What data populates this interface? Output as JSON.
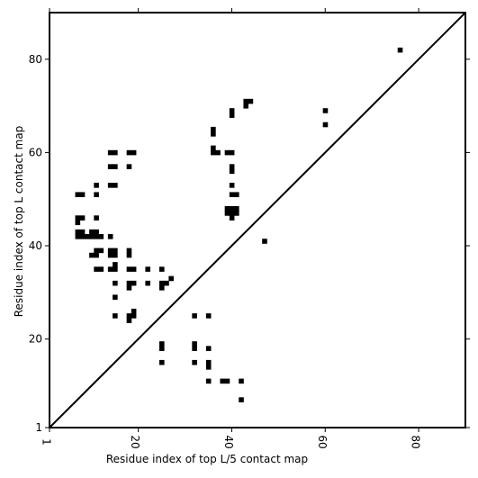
{
  "chart_data": {
    "type": "scatter",
    "title": "",
    "xlabel": "Residue index of top L/5 contact map",
    "ylabel": "Residue index of top L contact map",
    "xlim": [
      1,
      90
    ],
    "ylim": [
      1,
      90
    ],
    "xticks": [
      1,
      20,
      40,
      60,
      80
    ],
    "yticks": [
      1,
      20,
      40,
      60,
      80
    ],
    "grid": false,
    "legend": "none",
    "marker_color": "#000000",
    "diagonal_line": true,
    "series": [
      {
        "points": [
          [
            7,
            51
          ],
          [
            8,
            51
          ],
          [
            11,
            53
          ],
          [
            11,
            51
          ],
          [
            7,
            46
          ],
          [
            8,
            46
          ],
          [
            7,
            45
          ],
          [
            11,
            46
          ],
          [
            7,
            43
          ],
          [
            8,
            43
          ],
          [
            7,
            42
          ],
          [
            8,
            42
          ],
          [
            9,
            42
          ],
          [
            10,
            43
          ],
          [
            11,
            43
          ],
          [
            10,
            42
          ],
          [
            11,
            42
          ],
          [
            12,
            42
          ],
          [
            14,
            42
          ],
          [
            10,
            38
          ],
          [
            11,
            38
          ],
          [
            11,
            39
          ],
          [
            12,
            39
          ],
          [
            14,
            39
          ],
          [
            15,
            39
          ],
          [
            14,
            38
          ],
          [
            15,
            38
          ],
          [
            11,
            35
          ],
          [
            12,
            35
          ],
          [
            14,
            35
          ],
          [
            15,
            35
          ],
          [
            15,
            36
          ],
          [
            15,
            32
          ],
          [
            15,
            29
          ],
          [
            15,
            25
          ],
          [
            14,
            60
          ],
          [
            15,
            60
          ],
          [
            18,
            60
          ],
          [
            19,
            60
          ],
          [
            14,
            57
          ],
          [
            15,
            57
          ],
          [
            18,
            57
          ],
          [
            14,
            53
          ],
          [
            15,
            53
          ],
          [
            18,
            39
          ],
          [
            18,
            38
          ],
          [
            18,
            35
          ],
          [
            19,
            35
          ],
          [
            18,
            32
          ],
          [
            19,
            32
          ],
          [
            18,
            31
          ],
          [
            22,
            35
          ],
          [
            22,
            32
          ],
          [
            25,
            35
          ],
          [
            25,
            32
          ],
          [
            26,
            32
          ],
          [
            25,
            31
          ],
          [
            27,
            33
          ],
          [
            18,
            25
          ],
          [
            19,
            25
          ],
          [
            19,
            26
          ],
          [
            18,
            24
          ],
          [
            25,
            19
          ],
          [
            25,
            18
          ],
          [
            25,
            15
          ],
          [
            32,
            25
          ],
          [
            35,
            25
          ],
          [
            32,
            19
          ],
          [
            32,
            18
          ],
          [
            35,
            18
          ],
          [
            32,
            15
          ],
          [
            35,
            15
          ],
          [
            35,
            14
          ],
          [
            35,
            11
          ],
          [
            38,
            11
          ],
          [
            39,
            11
          ],
          [
            42,
            11
          ],
          [
            42,
            7
          ],
          [
            36,
            65
          ],
          [
            36,
            64
          ],
          [
            36,
            61
          ],
          [
            36,
            60
          ],
          [
            37,
            60
          ],
          [
            39,
            60
          ],
          [
            40,
            60
          ],
          [
            40,
            69
          ],
          [
            40,
            68
          ],
          [
            43,
            71
          ],
          [
            44,
            71
          ],
          [
            43,
            70
          ],
          [
            40,
            57
          ],
          [
            40,
            56
          ],
          [
            40,
            53
          ],
          [
            40,
            51
          ],
          [
            41,
            51
          ],
          [
            39,
            48
          ],
          [
            40,
            48
          ],
          [
            41,
            48
          ],
          [
            39,
            47
          ],
          [
            40,
            47
          ],
          [
            41,
            47
          ],
          [
            40,
            46
          ],
          [
            47,
            41
          ],
          [
            60,
            69
          ],
          [
            60,
            66
          ],
          [
            76,
            82
          ]
        ]
      }
    ]
  }
}
